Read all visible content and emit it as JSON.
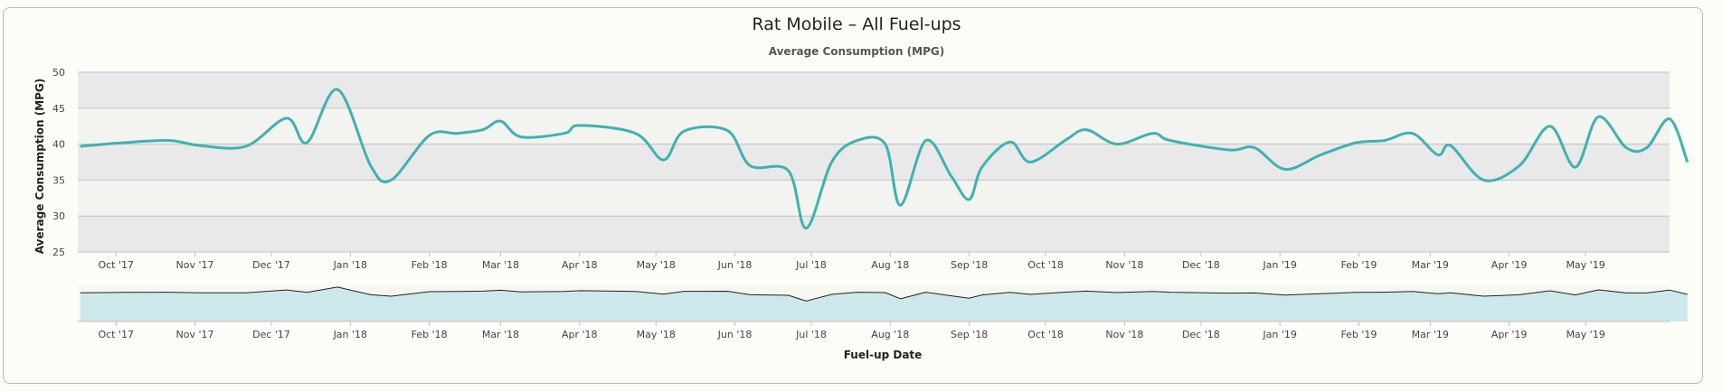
{
  "chart_data": {
    "type": "line",
    "title": "Rat Mobile – All Fuel-ups",
    "subtitle": "Average Consumption (MPG)",
    "ylabel": "Average Consumption (MPG)",
    "xlabel": "Fuel-up Date",
    "ylim": [
      25,
      50
    ],
    "yticks": [
      25,
      30,
      35,
      40,
      45,
      50
    ],
    "xlim": [
      "2017-09-16",
      "2019-06-03"
    ],
    "grid": true,
    "colors": {
      "line": "#3fb1b3",
      "plot_band": "#e9e9e9",
      "navigator_fill": "#cde8ea",
      "navigator_line": "#222222"
    },
    "x_ticks": [
      {
        "date": "2017-10-01",
        "label": "Oct '17"
      },
      {
        "date": "2017-11-01",
        "label": "Nov '17"
      },
      {
        "date": "2017-12-01",
        "label": "Dec '17"
      },
      {
        "date": "2018-01-01",
        "label": "Jan '18"
      },
      {
        "date": "2018-02-01",
        "label": "Feb '18"
      },
      {
        "date": "2018-03-01",
        "label": "Mar '18"
      },
      {
        "date": "2018-04-01",
        "label": "Apr '18"
      },
      {
        "date": "2018-05-01",
        "label": "May '18"
      },
      {
        "date": "2018-06-01",
        "label": "Jun '18"
      },
      {
        "date": "2018-07-01",
        "label": "Jul '18"
      },
      {
        "date": "2018-08-01",
        "label": "Aug '18"
      },
      {
        "date": "2018-09-01",
        "label": "Sep '18"
      },
      {
        "date": "2018-10-01",
        "label": "Oct '18"
      },
      {
        "date": "2018-11-01",
        "label": "Nov '18"
      },
      {
        "date": "2018-12-01",
        "label": "Dec '18"
      },
      {
        "date": "2019-01-01",
        "label": "Jan '19"
      },
      {
        "date": "2019-02-01",
        "label": "Feb '19"
      },
      {
        "date": "2019-03-01",
        "label": "Mar '19"
      },
      {
        "date": "2019-04-01",
        "label": "Apr '19"
      },
      {
        "date": "2019-05-01",
        "label": "May '19"
      }
    ],
    "series": [
      {
        "points": [
          [
            "2017-09-17",
            39.7
          ],
          [
            "2017-10-04",
            40.2
          ],
          [
            "2017-10-22",
            40.5
          ],
          [
            "2017-11-03",
            39.8
          ],
          [
            "2017-11-21",
            39.7
          ],
          [
            "2017-12-07",
            43.6
          ],
          [
            "2017-12-15",
            40.2
          ],
          [
            "2017-12-27",
            47.6
          ],
          [
            "2018-01-09",
            37.0
          ],
          [
            "2018-01-17",
            35.0
          ],
          [
            "2018-02-01",
            41.2
          ],
          [
            "2018-02-12",
            41.5
          ],
          [
            "2018-02-22",
            42.0
          ],
          [
            "2018-03-01",
            43.2
          ],
          [
            "2018-03-09",
            41.0
          ],
          [
            "2018-03-26",
            41.5
          ],
          [
            "2018-04-01",
            42.6
          ],
          [
            "2018-04-23",
            41.5
          ],
          [
            "2018-05-04",
            37.8
          ],
          [
            "2018-05-12",
            41.8
          ],
          [
            "2018-05-29",
            41.9
          ],
          [
            "2018-06-07",
            37.0
          ],
          [
            "2018-06-22",
            36.3
          ],
          [
            "2018-06-29",
            28.3
          ],
          [
            "2018-07-09",
            37.5
          ],
          [
            "2018-07-19",
            40.5
          ],
          [
            "2018-07-30",
            40.0
          ],
          [
            "2018-08-05",
            31.5
          ],
          [
            "2018-08-15",
            40.5
          ],
          [
            "2018-08-25",
            35.5
          ],
          [
            "2018-09-01",
            32.3
          ],
          [
            "2018-09-06",
            36.8
          ],
          [
            "2018-09-17",
            40.3
          ],
          [
            "2018-09-25",
            37.5
          ],
          [
            "2018-10-09",
            40.6
          ],
          [
            "2018-10-17",
            42.0
          ],
          [
            "2018-10-29",
            40.0
          ],
          [
            "2018-11-12",
            41.5
          ],
          [
            "2018-11-19",
            40.5
          ],
          [
            "2018-12-12",
            39.2
          ],
          [
            "2018-12-22",
            39.5
          ],
          [
            "2019-01-03",
            36.5
          ],
          [
            "2019-01-17",
            38.5
          ],
          [
            "2019-01-31",
            40.2
          ],
          [
            "2019-02-11",
            40.5
          ],
          [
            "2019-02-22",
            41.5
          ],
          [
            "2019-03-04",
            38.5
          ],
          [
            "2019-03-09",
            39.8
          ],
          [
            "2019-03-22",
            35.0
          ],
          [
            "2019-04-05",
            37.0
          ],
          [
            "2019-04-17",
            42.5
          ],
          [
            "2019-04-27",
            36.8
          ],
          [
            "2019-05-06",
            43.8
          ],
          [
            "2019-05-17",
            39.5
          ],
          [
            "2019-05-25",
            39.5
          ],
          [
            "2019-06-03",
            43.5
          ],
          [
            "2019-06-10",
            37.5
          ]
        ]
      }
    ]
  }
}
